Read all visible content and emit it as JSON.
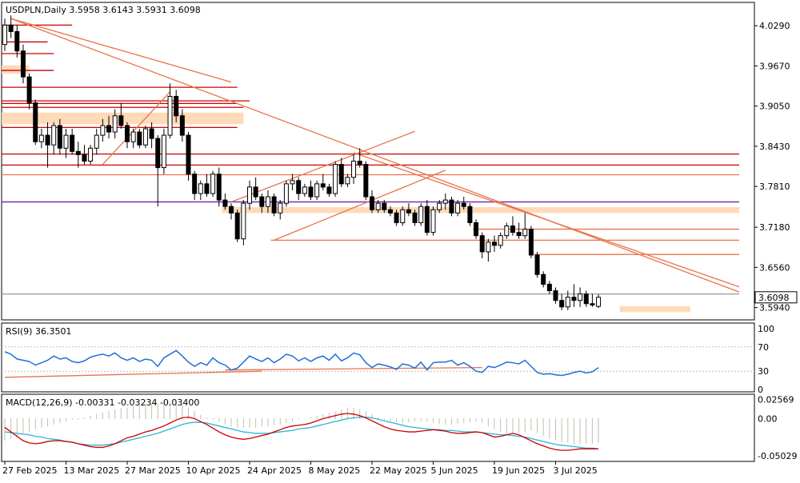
{
  "chart_data": [
    {
      "type": "candlestick",
      "symbol": "USDPLN",
      "timeframe": "Daily",
      "title": "USDPLN,Daily",
      "ohlc": [
        "3.5958",
        "3.6143",
        "3.5931",
        "3.6098"
      ],
      "last_price": "3.6098",
      "ylim": [
        3.575,
        4.065
      ],
      "y_ticks": [
        "4.0290",
        "3.9670",
        "3.9050",
        "3.8430",
        "3.7810",
        "3.7180",
        "3.6560",
        "3.5940"
      ],
      "x_tick_labels": [
        "27 Feb 2025",
        "13 Mar 2025",
        "27 Mar 2025",
        "10 Apr 2025",
        "24 Apr 2025",
        "8 May 2025",
        "22 May 2025",
        "5 Jun 2025",
        "19 Jun 2025",
        "3 Jul 2025"
      ],
      "x_tick_bar_index": [
        0,
        10,
        20,
        30,
        40,
        50,
        60,
        70,
        80,
        90
      ],
      "candles": [
        [
          4.0,
          4.04,
          3.99,
          4.03
        ],
        [
          4.03,
          4.045,
          4.01,
          4.02
        ],
        [
          4.02,
          4.03,
          3.98,
          3.99
        ],
        [
          3.99,
          4.0,
          3.94,
          3.95
        ],
        [
          3.95,
          3.955,
          3.9,
          3.91
        ],
        [
          3.91,
          3.915,
          3.845,
          3.85
        ],
        [
          3.85,
          3.87,
          3.84,
          3.86
        ],
        [
          3.86,
          3.88,
          3.81,
          3.845
        ],
        [
          3.845,
          3.88,
          3.83,
          3.875
        ],
        [
          3.875,
          3.885,
          3.83,
          3.84
        ],
        [
          3.84,
          3.87,
          3.825,
          3.86
        ],
        [
          3.86,
          3.87,
          3.83,
          3.835
        ],
        [
          3.835,
          3.85,
          3.81,
          3.83
        ],
        [
          3.83,
          3.845,
          3.815,
          3.82
        ],
        [
          3.82,
          3.845,
          3.815,
          3.84
        ],
        [
          3.84,
          3.87,
          3.83,
          3.86
        ],
        [
          3.86,
          3.885,
          3.85,
          3.875
        ],
        [
          3.875,
          3.89,
          3.855,
          3.865
        ],
        [
          3.865,
          3.9,
          3.855,
          3.89
        ],
        [
          3.89,
          3.91,
          3.87,
          3.875
        ],
        [
          3.875,
          3.88,
          3.84,
          3.85
        ],
        [
          3.85,
          3.87,
          3.84,
          3.865
        ],
        [
          3.865,
          3.87,
          3.84,
          3.845
        ],
        [
          3.845,
          3.875,
          3.84,
          3.87
        ],
        [
          3.87,
          3.88,
          3.84,
          3.855
        ],
        [
          3.855,
          3.86,
          3.75,
          3.81
        ],
        [
          3.81,
          3.87,
          3.8,
          3.86
        ],
        [
          3.86,
          3.94,
          3.855,
          3.92
        ],
        [
          3.92,
          3.93,
          3.88,
          3.89
        ],
        [
          3.89,
          3.9,
          3.85,
          3.86
        ],
        [
          3.86,
          3.865,
          3.79,
          3.8
        ],
        [
          3.8,
          3.805,
          3.76,
          3.77
        ],
        [
          3.77,
          3.79,
          3.76,
          3.785
        ],
        [
          3.785,
          3.8,
          3.765,
          3.77
        ],
        [
          3.77,
          3.805,
          3.765,
          3.8
        ],
        [
          3.8,
          3.81,
          3.75,
          3.76
        ],
        [
          3.76,
          3.77,
          3.745,
          3.75
        ],
        [
          3.75,
          3.755,
          3.73,
          3.74
        ],
        [
          3.74,
          3.745,
          3.695,
          3.7
        ],
        [
          3.7,
          3.76,
          3.69,
          3.755
        ],
        [
          3.755,
          3.79,
          3.745,
          3.78
        ],
        [
          3.78,
          3.795,
          3.76,
          3.765
        ],
        [
          3.765,
          3.77,
          3.74,
          3.75
        ],
        [
          3.75,
          3.775,
          3.74,
          3.765
        ],
        [
          3.765,
          3.77,
          3.735,
          3.74
        ],
        [
          3.74,
          3.76,
          3.73,
          3.755
        ],
        [
          3.755,
          3.79,
          3.75,
          3.785
        ],
        [
          3.785,
          3.8,
          3.775,
          3.79
        ],
        [
          3.79,
          3.795,
          3.76,
          3.77
        ],
        [
          3.77,
          3.785,
          3.765,
          3.78
        ],
        [
          3.78,
          3.79,
          3.76,
          3.765
        ],
        [
          3.765,
          3.79,
          3.76,
          3.785
        ],
        [
          3.785,
          3.8,
          3.775,
          3.78
        ],
        [
          3.78,
          3.785,
          3.765,
          3.77
        ],
        [
          3.77,
          3.82,
          3.765,
          3.815
        ],
        [
          3.815,
          3.825,
          3.78,
          3.785
        ],
        [
          3.785,
          3.8,
          3.78,
          3.795
        ],
        [
          3.795,
          3.83,
          3.785,
          3.82
        ],
        [
          3.82,
          3.84,
          3.81,
          3.815
        ],
        [
          3.815,
          3.82,
          3.76,
          3.765
        ],
        [
          3.765,
          3.775,
          3.74,
          3.745
        ],
        [
          3.745,
          3.76,
          3.74,
          3.755
        ],
        [
          3.755,
          3.76,
          3.74,
          3.745
        ],
        [
          3.745,
          3.75,
          3.735,
          3.74
        ],
        [
          3.74,
          3.745,
          3.72,
          3.725
        ],
        [
          3.725,
          3.75,
          3.72,
          3.745
        ],
        [
          3.745,
          3.755,
          3.735,
          3.74
        ],
        [
          3.74,
          3.745,
          3.72,
          3.725
        ],
        [
          3.725,
          3.755,
          3.72,
          3.75
        ],
        [
          3.75,
          3.76,
          3.705,
          3.71
        ],
        [
          3.71,
          3.75,
          3.705,
          3.745
        ],
        [
          3.745,
          3.76,
          3.74,
          3.755
        ],
        [
          3.755,
          3.77,
          3.745,
          3.76
        ],
        [
          3.76,
          3.765,
          3.735,
          3.74
        ],
        [
          3.74,
          3.76,
          3.735,
          3.755
        ],
        [
          3.755,
          3.765,
          3.745,
          3.75
        ],
        [
          3.75,
          3.755,
          3.72,
          3.725
        ],
        [
          3.725,
          3.73,
          3.7,
          3.705
        ],
        [
          3.705,
          3.71,
          3.67,
          3.68
        ],
        [
          3.68,
          3.7,
          3.665,
          3.695
        ],
        [
          3.695,
          3.705,
          3.68,
          3.69
        ],
        [
          3.69,
          3.71,
          3.685,
          3.705
        ],
        [
          3.705,
          3.725,
          3.7,
          3.72
        ],
        [
          3.72,
          3.735,
          3.705,
          3.71
        ],
        [
          3.71,
          3.725,
          3.7,
          3.705
        ],
        [
          3.705,
          3.74,
          3.7,
          3.715
        ],
        [
          3.715,
          3.72,
          3.67,
          3.675
        ],
        [
          3.675,
          3.68,
          3.64,
          3.645
        ],
        [
          3.645,
          3.65,
          3.625,
          3.63
        ],
        [
          3.63,
          3.635,
          3.615,
          3.62
        ],
        [
          3.62,
          3.625,
          3.6,
          3.605
        ],
        [
          3.605,
          3.615,
          3.59,
          3.595
        ],
        [
          3.595,
          3.62,
          3.59,
          3.61
        ],
        [
          3.61,
          3.63,
          3.595,
          3.605
        ],
        [
          3.605,
          3.625,
          3.595,
          3.615
        ],
        [
          3.615,
          3.62,
          3.595,
          3.6
        ],
        [
          3.6,
          3.615,
          3.595,
          3.598
        ],
        [
          3.5958,
          3.6143,
          3.5931,
          3.6098
        ]
      ],
      "horizontal_levels": [
        {
          "price": 4.03,
          "color": "#cc0000",
          "from": 0,
          "to": 11
        },
        {
          "price": 4.004,
          "color": "#cc0000",
          "from": 0,
          "to": 7
        },
        {
          "price": 3.986,
          "color": "#cc0000",
          "from": 0,
          "to": 8
        },
        {
          "price": 3.96,
          "color": "#cc0000",
          "from": 0,
          "to": 8
        },
        {
          "price": 3.934,
          "color": "#cc0000",
          "from": 0,
          "to": 38
        },
        {
          "price": 3.913,
          "color": "#cc0000",
          "from": 0,
          "to": 40
        },
        {
          "price": 3.909,
          "color": "#cc0000",
          "from": 0,
          "to": 38
        },
        {
          "price": 3.903,
          "color": "#cc0000",
          "from": 0,
          "to": 39
        },
        {
          "price": 3.872,
          "color": "#cc0000",
          "from": 0,
          "to": 38
        },
        {
          "price": 3.831,
          "color": "#cc0000",
          "from": 0,
          "to": 120
        },
        {
          "price": 3.814,
          "color": "#cc0000",
          "from": 0,
          "to": 120
        },
        {
          "price": 3.799,
          "color": "#e8734a",
          "from": 0,
          "to": 120
        },
        {
          "price": 3.757,
          "color": "#7b2fa8",
          "from": 0,
          "to": 120
        },
        {
          "price": 3.715,
          "color": "#e8734a",
          "from": 77,
          "to": 120
        },
        {
          "price": 3.698,
          "color": "#e8734a",
          "from": 44,
          "to": 120
        },
        {
          "price": 3.676,
          "color": "#e8734a",
          "from": 87,
          "to": 120
        },
        {
          "price": 3.615,
          "color": "#999999",
          "from": 0,
          "to": 120
        }
      ],
      "zones": [
        {
          "from": 0,
          "to": 4,
          "p1": 3.968,
          "p2": 3.955
        },
        {
          "from": 0,
          "to": 39,
          "p1": 3.895,
          "p2": 3.877
        },
        {
          "from": 36,
          "to": 120,
          "p1": 3.749,
          "p2": 3.74
        },
        {
          "from": 101,
          "to": 112,
          "p1": 3.596,
          "p2": 3.587
        }
      ],
      "trendlines": [
        {
          "x1": 1,
          "y1": 4.04,
          "x2": 120,
          "y2": 3.618
        },
        {
          "x1": 1,
          "y1": 4.04,
          "x2": 37,
          "y2": 3.942
        },
        {
          "x1": 57,
          "y1": 3.833,
          "x2": 120,
          "y2": 3.626
        },
        {
          "x1": 16,
          "y1": 3.815,
          "x2": 27,
          "y2": 3.927
        },
        {
          "x1": 37,
          "y1": 3.757,
          "x2": 67,
          "y2": 3.866
        },
        {
          "x1": 44,
          "y1": 3.698,
          "x2": 72,
          "y2": 3.806
        }
      ],
      "rsi": {
        "label": "RSI(9) 36.3501",
        "levels": [
          "100",
          "70",
          "30",
          "0"
        ],
        "values": [
          62,
          58,
          50,
          48,
          46,
          40,
          44,
          48,
          55,
          50,
          52,
          46,
          44,
          47,
          53,
          56,
          58,
          55,
          60,
          52,
          48,
          52,
          46,
          50,
          48,
          38,
          52,
          58,
          64,
          55,
          45,
          38,
          44,
          40,
          52,
          44,
          40,
          32,
          35,
          45,
          55,
          50,
          46,
          52,
          44,
          50,
          58,
          55,
          47,
          52,
          46,
          52,
          55,
          48,
          58,
          47,
          52,
          60,
          57,
          44,
          36,
          42,
          40,
          37,
          33,
          42,
          40,
          35,
          45,
          32,
          44,
          45,
          45,
          48,
          40,
          44,
          38,
          30,
          28,
          38,
          36,
          40,
          45,
          44,
          42,
          48,
          38,
          28,
          25,
          26,
          24,
          23,
          25,
          28,
          30,
          27,
          29,
          36
        ],
        "trendlines": [
          {
            "x1": 0,
            "y1": 20,
            "x2": 42,
            "y2": 30
          },
          {
            "x1": 36,
            "y1": 32,
            "x2": 78,
            "y2": 36
          }
        ]
      },
      "macd": {
        "label": "MACD(12,26,9) -0.00331 -0.03234 -0.03400",
        "y_ticks": [
          "0.02569",
          "0.00",
          "-0.05029"
        ],
        "ylim": [
          -0.058,
          0.033
        ],
        "histogram": [
          -0.03,
          -0.028,
          -0.025,
          -0.02,
          -0.018,
          -0.015,
          -0.012,
          -0.01,
          -0.008,
          -0.006,
          -0.004,
          -0.002,
          -0.001,
          0.001,
          0.004,
          0.006,
          0.008,
          0.01,
          0.012,
          0.014,
          0.015,
          0.017,
          0.018,
          0.019,
          0.02,
          0.02,
          0.021,
          0.022,
          0.021,
          0.019,
          0.015,
          0.01,
          0.005,
          0.001,
          -0.002,
          -0.005,
          -0.008,
          -0.01,
          -0.012,
          -0.013,
          -0.013,
          -0.012,
          -0.011,
          -0.01,
          -0.009,
          -0.008,
          -0.006,
          -0.004,
          -0.002,
          0.0,
          0.002,
          0.004,
          0.006,
          0.008,
          0.01,
          0.012,
          0.014,
          0.015,
          0.013,
          0.01,
          0.006,
          0.002,
          -0.002,
          -0.004,
          -0.005,
          -0.006,
          -0.005,
          -0.004,
          -0.003,
          -0.004,
          -0.006,
          -0.007,
          -0.008,
          -0.008,
          -0.007,
          -0.006,
          -0.005,
          -0.004,
          -0.006,
          -0.01,
          -0.014,
          -0.018,
          -0.022,
          -0.022,
          -0.02,
          -0.018,
          -0.016,
          -0.02,
          -0.024,
          -0.027,
          -0.03,
          -0.032,
          -0.033,
          -0.034,
          -0.034,
          -0.034,
          -0.034,
          -0.033
        ],
        "macd": [
          -0.012,
          -0.018,
          -0.024,
          -0.03,
          -0.033,
          -0.034,
          -0.033,
          -0.031,
          -0.03,
          -0.03,
          -0.031,
          -0.032,
          -0.034,
          -0.036,
          -0.038,
          -0.039,
          -0.039,
          -0.037,
          -0.034,
          -0.03,
          -0.026,
          -0.024,
          -0.021,
          -0.018,
          -0.016,
          -0.013,
          -0.01,
          -0.006,
          -0.002,
          0.001,
          0.002,
          0.0,
          -0.004,
          -0.008,
          -0.013,
          -0.018,
          -0.022,
          -0.025,
          -0.027,
          -0.028,
          -0.027,
          -0.025,
          -0.023,
          -0.021,
          -0.018,
          -0.015,
          -0.012,
          -0.01,
          -0.009,
          -0.008,
          -0.006,
          -0.003,
          0.0,
          0.002,
          0.004,
          0.006,
          0.007,
          0.006,
          0.004,
          0.001,
          -0.003,
          -0.007,
          -0.011,
          -0.014,
          -0.016,
          -0.017,
          -0.018,
          -0.018,
          -0.017,
          -0.016,
          -0.015,
          -0.016,
          -0.017,
          -0.019,
          -0.02,
          -0.02,
          -0.019,
          -0.018,
          -0.019,
          -0.022,
          -0.025,
          -0.024,
          -0.022,
          -0.02,
          -0.022,
          -0.026,
          -0.03,
          -0.034,
          -0.037,
          -0.04,
          -0.042,
          -0.043,
          -0.043,
          -0.042,
          -0.041,
          -0.041,
          -0.041,
          -0.041
        ],
        "signal": [
          -0.018,
          -0.019,
          -0.02,
          -0.021,
          -0.022,
          -0.024,
          -0.025,
          -0.027,
          -0.028,
          -0.029,
          -0.031,
          -0.032,
          -0.034,
          -0.035,
          -0.036,
          -0.036,
          -0.036,
          -0.035,
          -0.034,
          -0.032,
          -0.03,
          -0.028,
          -0.026,
          -0.024,
          -0.022,
          -0.02,
          -0.017,
          -0.014,
          -0.011,
          -0.008,
          -0.006,
          -0.005,
          -0.005,
          -0.006,
          -0.008,
          -0.01,
          -0.012,
          -0.014,
          -0.016,
          -0.018,
          -0.019,
          -0.02,
          -0.02,
          -0.02,
          -0.019,
          -0.018,
          -0.017,
          -0.016,
          -0.014,
          -0.013,
          -0.012,
          -0.01,
          -0.008,
          -0.006,
          -0.004,
          -0.002,
          0.0,
          0.001,
          0.002,
          0.002,
          0.001,
          -0.001,
          -0.003,
          -0.005,
          -0.007,
          -0.009,
          -0.011,
          -0.012,
          -0.013,
          -0.014,
          -0.015,
          -0.015,
          -0.016,
          -0.016,
          -0.017,
          -0.018,
          -0.018,
          -0.018,
          -0.019,
          -0.02,
          -0.021,
          -0.022,
          -0.022,
          -0.023,
          -0.024,
          -0.025,
          -0.027,
          -0.029,
          -0.031,
          -0.033,
          -0.035,
          -0.036,
          -0.037,
          -0.038,
          -0.039,
          -0.04,
          -0.04,
          -0.041
        ]
      }
    }
  ]
}
